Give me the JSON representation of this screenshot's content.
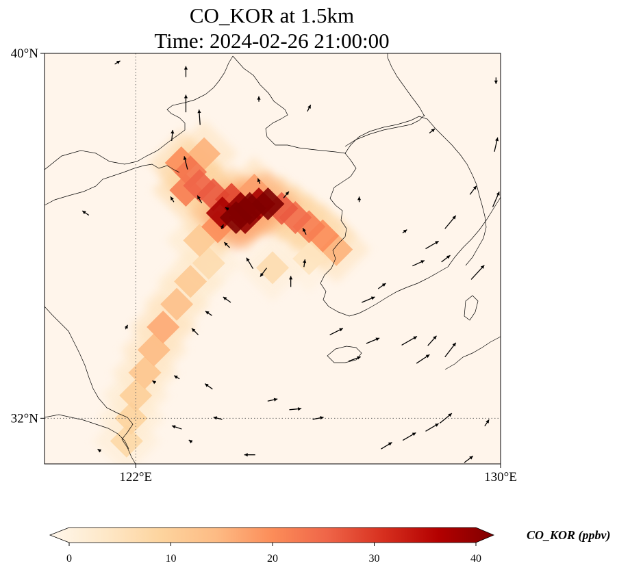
{
  "title": {
    "line1": "CO_KOR at 1.5km",
    "line2": "Time: 2024-02-26 21:00:00"
  },
  "map": {
    "lon_range": [
      120,
      130
    ],
    "lat_range": [
      31,
      40
    ],
    "lon_ticks": [
      {
        "value": 122,
        "label": "122°E"
      },
      {
        "value": 130,
        "label": "130°E"
      }
    ],
    "lat_ticks": [
      {
        "value": 40,
        "label": "40°N"
      },
      {
        "value": 32,
        "label": "32°N"
      }
    ],
    "gridlines": "dotted",
    "background_color": "#fff5eb",
    "coastline_color": "#000000"
  },
  "colorbar": {
    "title": "CO_KOR (ppbv)",
    "min": 0,
    "max": 40,
    "extend": "both",
    "colormap": "OrRd",
    "colors": [
      "#fff7ec",
      "#fee8c8",
      "#fdd49e",
      "#fdbb84",
      "#fc8d59",
      "#ef6548",
      "#d7301f",
      "#b30000",
      "#7f0000"
    ],
    "ticks": [
      {
        "value": 0,
        "label": "0"
      },
      {
        "value": 10,
        "label": "10"
      },
      {
        "value": 20,
        "label": "20"
      },
      {
        "value": 30,
        "label": "30"
      },
      {
        "value": 40,
        "label": "40"
      }
    ]
  },
  "plume_cells": [
    {
      "lon": 124.1,
      "lat": 36.8,
      "v": 28
    },
    {
      "lon": 124.3,
      "lat": 36.6,
      "v": 38
    },
    {
      "lon": 124.5,
      "lat": 36.6,
      "v": 42
    },
    {
      "lon": 124.7,
      "lat": 36.7,
      "v": 36
    },
    {
      "lon": 124.9,
      "lat": 36.7,
      "v": 40
    },
    {
      "lon": 123.9,
      "lat": 36.5,
      "v": 36
    },
    {
      "lon": 124.2,
      "lat": 36.4,
      "v": 44
    },
    {
      "lon": 124.4,
      "lat": 36.4,
      "v": 38
    },
    {
      "lon": 123.7,
      "lat": 36.9,
      "v": 26
    },
    {
      "lon": 123.4,
      "lat": 37.1,
      "v": 25
    },
    {
      "lon": 123.2,
      "lat": 37.4,
      "v": 23
    },
    {
      "lon": 123.0,
      "lat": 37.6,
      "v": 20
    },
    {
      "lon": 123.5,
      "lat": 37.8,
      "v": 16
    },
    {
      "lon": 123.1,
      "lat": 37.0,
      "v": 22
    },
    {
      "lon": 125.2,
      "lat": 36.6,
      "v": 26
    },
    {
      "lon": 125.5,
      "lat": 36.4,
      "v": 24
    },
    {
      "lon": 125.8,
      "lat": 36.2,
      "v": 22
    },
    {
      "lon": 126.1,
      "lat": 36.0,
      "v": 20
    },
    {
      "lon": 126.4,
      "lat": 35.7,
      "v": 16
    },
    {
      "lon": 124.6,
      "lat": 37.0,
      "v": 18
    },
    {
      "lon": 123.8,
      "lat": 36.2,
      "v": 20
    },
    {
      "lon": 123.4,
      "lat": 35.9,
      "v": 12
    },
    {
      "lon": 123.6,
      "lat": 35.4,
      "v": 8
    },
    {
      "lon": 123.2,
      "lat": 35.0,
      "v": 12
    },
    {
      "lon": 122.9,
      "lat": 34.5,
      "v": 14
    },
    {
      "lon": 122.6,
      "lat": 34.0,
      "v": 17
    },
    {
      "lon": 122.4,
      "lat": 33.5,
      "v": 15
    },
    {
      "lon": 122.2,
      "lat": 33.0,
      "v": 13
    },
    {
      "lon": 122.0,
      "lat": 32.5,
      "v": 11
    },
    {
      "lon": 121.9,
      "lat": 32.0,
      "v": 10
    },
    {
      "lon": 121.8,
      "lat": 31.5,
      "v": 9
    },
    {
      "lon": 125.0,
      "lat": 35.3,
      "v": 8
    },
    {
      "lon": 125.8,
      "lat": 35.5,
      "v": 6
    }
  ],
  "wind_vectors": [
    {
      "lon": 121.6,
      "lat": 39.8,
      "u": 0.5,
      "v": 0.3
    },
    {
      "lon": 123.1,
      "lat": 39.6,
      "u": 0,
      "v": 1
    },
    {
      "lon": 123.1,
      "lat": 38.9,
      "u": 0,
      "v": 1.6
    },
    {
      "lon": 123.4,
      "lat": 38.6,
      "u": -0.1,
      "v": 1.4
    },
    {
      "lon": 122.8,
      "lat": 38.2,
      "u": 0.1,
      "v": 1
    },
    {
      "lon": 124.7,
      "lat": 39.0,
      "u": 0,
      "v": 0.5
    },
    {
      "lon": 125.8,
      "lat": 38.8,
      "u": 0.3,
      "v": 0.6
    },
    {
      "lon": 123.1,
      "lat": 37.6,
      "u": -0.3,
      "v": 1.2
    },
    {
      "lon": 124.7,
      "lat": 37.2,
      "u": -0.2,
      "v": 0.5
    },
    {
      "lon": 125.3,
      "lat": 36.9,
      "u": 0.5,
      "v": 0.6
    },
    {
      "lon": 123.4,
      "lat": 36.8,
      "u": -0.4,
      "v": 0.7
    },
    {
      "lon": 124.0,
      "lat": 36.6,
      "u": -0.3,
      "v": 0.2
    },
    {
      "lon": 122.8,
      "lat": 36.8,
      "u": -0.3,
      "v": 0.5
    },
    {
      "lon": 123.9,
      "lat": 36.2,
      "u": 0.2,
      "v": 0.4
    },
    {
      "lon": 125.7,
      "lat": 36.1,
      "u": -0.3,
      "v": 0.6
    },
    {
      "lon": 124.0,
      "lat": 35.8,
      "u": -0.5,
      "v": 0.5
    },
    {
      "lon": 124.5,
      "lat": 35.4,
      "u": -0.6,
      "v": 1
    },
    {
      "lon": 124.8,
      "lat": 35.2,
      "u": -0.6,
      "v": -0.8
    },
    {
      "lon": 125.4,
      "lat": 35.0,
      "u": 0,
      "v": 1
    },
    {
      "lon": 125.7,
      "lat": 35.4,
      "u": 0.1,
      "v": 0.7
    },
    {
      "lon": 124.0,
      "lat": 34.6,
      "u": -0.7,
      "v": 0.5
    },
    {
      "lon": 123.6,
      "lat": 34.3,
      "u": -0.6,
      "v": 0.4
    },
    {
      "lon": 123.3,
      "lat": 33.9,
      "u": -0.6,
      "v": 0.6
    },
    {
      "lon": 123.6,
      "lat": 32.7,
      "u": -0.7,
      "v": 0.5
    },
    {
      "lon": 123.8,
      "lat": 32.0,
      "u": -0.8,
      "v": 0.2
    },
    {
      "lon": 122.9,
      "lat": 31.8,
      "u": -0.9,
      "v": 0.3
    },
    {
      "lon": 124.5,
      "lat": 31.2,
      "u": -1,
      "v": 0
    },
    {
      "lon": 125.5,
      "lat": 32.2,
      "u": 1.1,
      "v": 0.1
    },
    {
      "lon": 125.0,
      "lat": 32.4,
      "u": 0.9,
      "v": 0.2
    },
    {
      "lon": 126.0,
      "lat": 32.0,
      "u": 1,
      "v": 0.2
    },
    {
      "lon": 126.8,
      "lat": 33.3,
      "u": 1.1,
      "v": 0.4
    },
    {
      "lon": 127.2,
      "lat": 33.7,
      "u": 1.2,
      "v": 0.5
    },
    {
      "lon": 126.4,
      "lat": 33.9,
      "u": 1.2,
      "v": 0.6
    },
    {
      "lon": 127.1,
      "lat": 34.6,
      "u": 1.2,
      "v": 0.5
    },
    {
      "lon": 128.0,
      "lat": 33.7,
      "u": 1.4,
      "v": 0.8
    },
    {
      "lon": 128.3,
      "lat": 33.3,
      "u": 1.2,
      "v": 0.8
    },
    {
      "lon": 128.5,
      "lat": 33.7,
      "u": 0.8,
      "v": 0.9
    },
    {
      "lon": 128.9,
      "lat": 33.5,
      "u": 1,
      "v": 1.3
    },
    {
      "lon": 127.5,
      "lat": 31.4,
      "u": 1,
      "v": 0.6
    },
    {
      "lon": 128.0,
      "lat": 31.6,
      "u": 1.2,
      "v": 0.7
    },
    {
      "lon": 128.5,
      "lat": 31.8,
      "u": 1.2,
      "v": 0.7
    },
    {
      "lon": 128.8,
      "lat": 32.0,
      "u": 1.1,
      "v": 0.9
    },
    {
      "lon": 129.3,
      "lat": 31.1,
      "u": 0.8,
      "v": 0.6
    },
    {
      "lon": 129.7,
      "lat": 31.9,
      "u": 0.4,
      "v": 0.6
    },
    {
      "lon": 128.2,
      "lat": 35.4,
      "u": 1.1,
      "v": 0.5
    },
    {
      "lon": 128.5,
      "lat": 35.8,
      "u": 1.2,
      "v": 0.7
    },
    {
      "lon": 128.8,
      "lat": 35.5,
      "u": 0.8,
      "v": 0.6
    },
    {
      "lon": 128.9,
      "lat": 36.3,
      "u": 1,
      "v": 1.2
    },
    {
      "lon": 129.5,
      "lat": 35.2,
      "u": 1.2,
      "v": 1.3
    },
    {
      "lon": 129.9,
      "lat": 36.8,
      "u": 0.6,
      "v": 1.4
    },
    {
      "lon": 129.4,
      "lat": 37.0,
      "u": 0.6,
      "v": 0.8
    },
    {
      "lon": 127.4,
      "lat": 34.9,
      "u": 0.7,
      "v": 0.5
    },
    {
      "lon": 126.9,
      "lat": 36.8,
      "u": 0,
      "v": 0.5
    },
    {
      "lon": 127.9,
      "lat": 36.1,
      "u": 0.4,
      "v": 0.3
    },
    {
      "lon": 128.5,
      "lat": 38.3,
      "u": 0.5,
      "v": 0.4
    },
    {
      "lon": 129.9,
      "lat": 38.0,
      "u": 0.3,
      "v": 1.3
    },
    {
      "lon": 129.9,
      "lat": 39.4,
      "u": 0,
      "v": -0.6
    },
    {
      "lon": 120.9,
      "lat": 36.5,
      "u": -0.6,
      "v": 0.4
    },
    {
      "lon": 121.8,
      "lat": 34.0,
      "u": 0.2,
      "v": 0.4
    },
    {
      "lon": 122.4,
      "lat": 32.8,
      "u": -0.3,
      "v": 0.2
    },
    {
      "lon": 122.9,
      "lat": 32.9,
      "u": -0.5,
      "v": 0.3
    },
    {
      "lon": 123.2,
      "lat": 31.5,
      "u": -0.3,
      "v": 0.2
    },
    {
      "lon": 121.2,
      "lat": 31.3,
      "u": -0.3,
      "v": 0.2
    }
  ]
}
